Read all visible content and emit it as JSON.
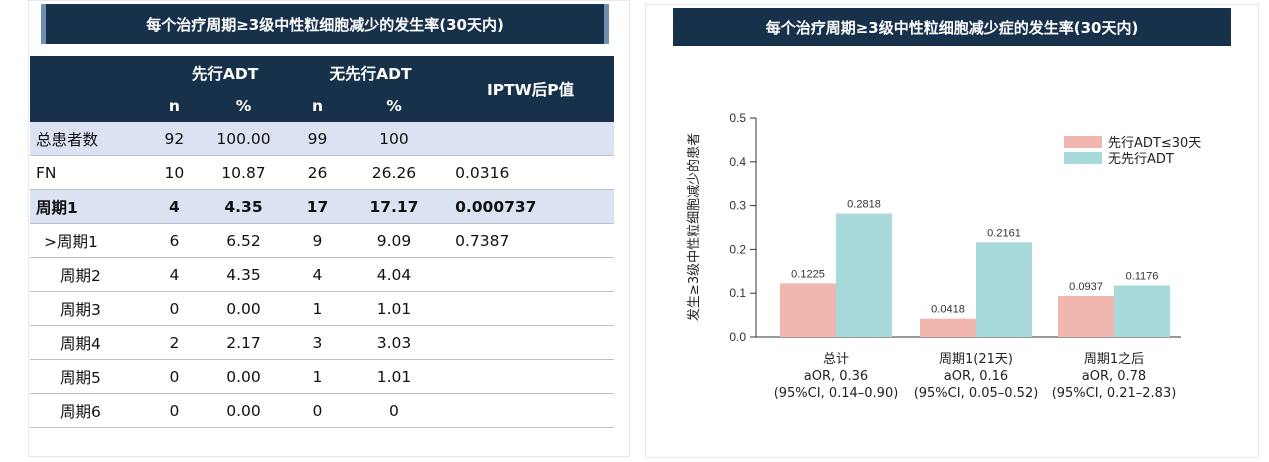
{
  "left": {
    "title": "每个治疗周期≥3级中性粒细胞减少的发生率(30天内)",
    "header": {
      "group1": "先行ADT",
      "group2": "无先行ADT",
      "pcol": "IPTW后P值",
      "n": "n",
      "pct": "%"
    },
    "rows": [
      {
        "label": "总患者数",
        "n1": "92",
        "p1": "100.00",
        "n2": "99",
        "p2": "100",
        "pval": ""
      },
      {
        "label": "FN",
        "n1": "10",
        "p1": "10.87",
        "n2": "26",
        "p2": "26.26",
        "pval": "0.0316"
      },
      {
        "label": "周期1",
        "n1": "4",
        "p1": "4.35",
        "n2": "17",
        "p2": "17.17",
        "pval": "0.000737"
      },
      {
        "label": ">周期1",
        "n1": "6",
        "p1": "6.52",
        "n2": "9",
        "p2": "9.09",
        "pval": "0.7387"
      },
      {
        "label": "周期2",
        "n1": "4",
        "p1": "4.35",
        "n2": "4",
        "p2": "4.04",
        "pval": ""
      },
      {
        "label": "周期3",
        "n1": "0",
        "p1": "0.00",
        "n2": "1",
        "p2": "1.01",
        "pval": ""
      },
      {
        "label": "周期4",
        "n1": "2",
        "p1": "2.17",
        "n2": "3",
        "p2": "3.03",
        "pval": ""
      },
      {
        "label": "周期5",
        "n1": "0",
        "p1": "0.00",
        "n2": "1",
        "p2": "1.01",
        "pval": ""
      },
      {
        "label": "周期6",
        "n1": "0",
        "p1": "0.00",
        "n2": "0",
        "p2": "0",
        "pval": ""
      }
    ]
  },
  "chart_data": {
    "type": "bar",
    "title": "每个治疗周期≥3级中性粒细胞减少症的发生率(30天内)",
    "ylabel": "发生≥3级中性粒细胞减少的患者",
    "ylim": [
      0,
      0.5
    ],
    "yticks": [
      "0.0",
      "0.1",
      "0.2",
      "0.3",
      "0.4",
      "0.5"
    ],
    "legend_position": "top-right",
    "categories": [
      [
        "总计",
        "aOR, 0.36",
        "(95%CI, 0.14–0.90)"
      ],
      [
        "周期1(21天)",
        "aOR, 0.16",
        "(95%CI, 0.05–0.52)"
      ],
      [
        "周期1之后",
        "aOR, 0.78",
        "(95%CI, 0.21–2.83)"
      ]
    ],
    "series": [
      {
        "name": "先行ADT≤30天",
        "color": "#f2b6b0",
        "values": [
          0.1225,
          0.0418,
          0.0937
        ],
        "labels": [
          "0.1225",
          "0.0418",
          "0.0937"
        ]
      },
      {
        "name": "无先行ADT",
        "color": "#a8dadc",
        "values": [
          0.2818,
          0.2161,
          0.1176
        ],
        "labels": [
          "0.2818",
          "0.2161",
          "0.1176"
        ]
      }
    ]
  }
}
